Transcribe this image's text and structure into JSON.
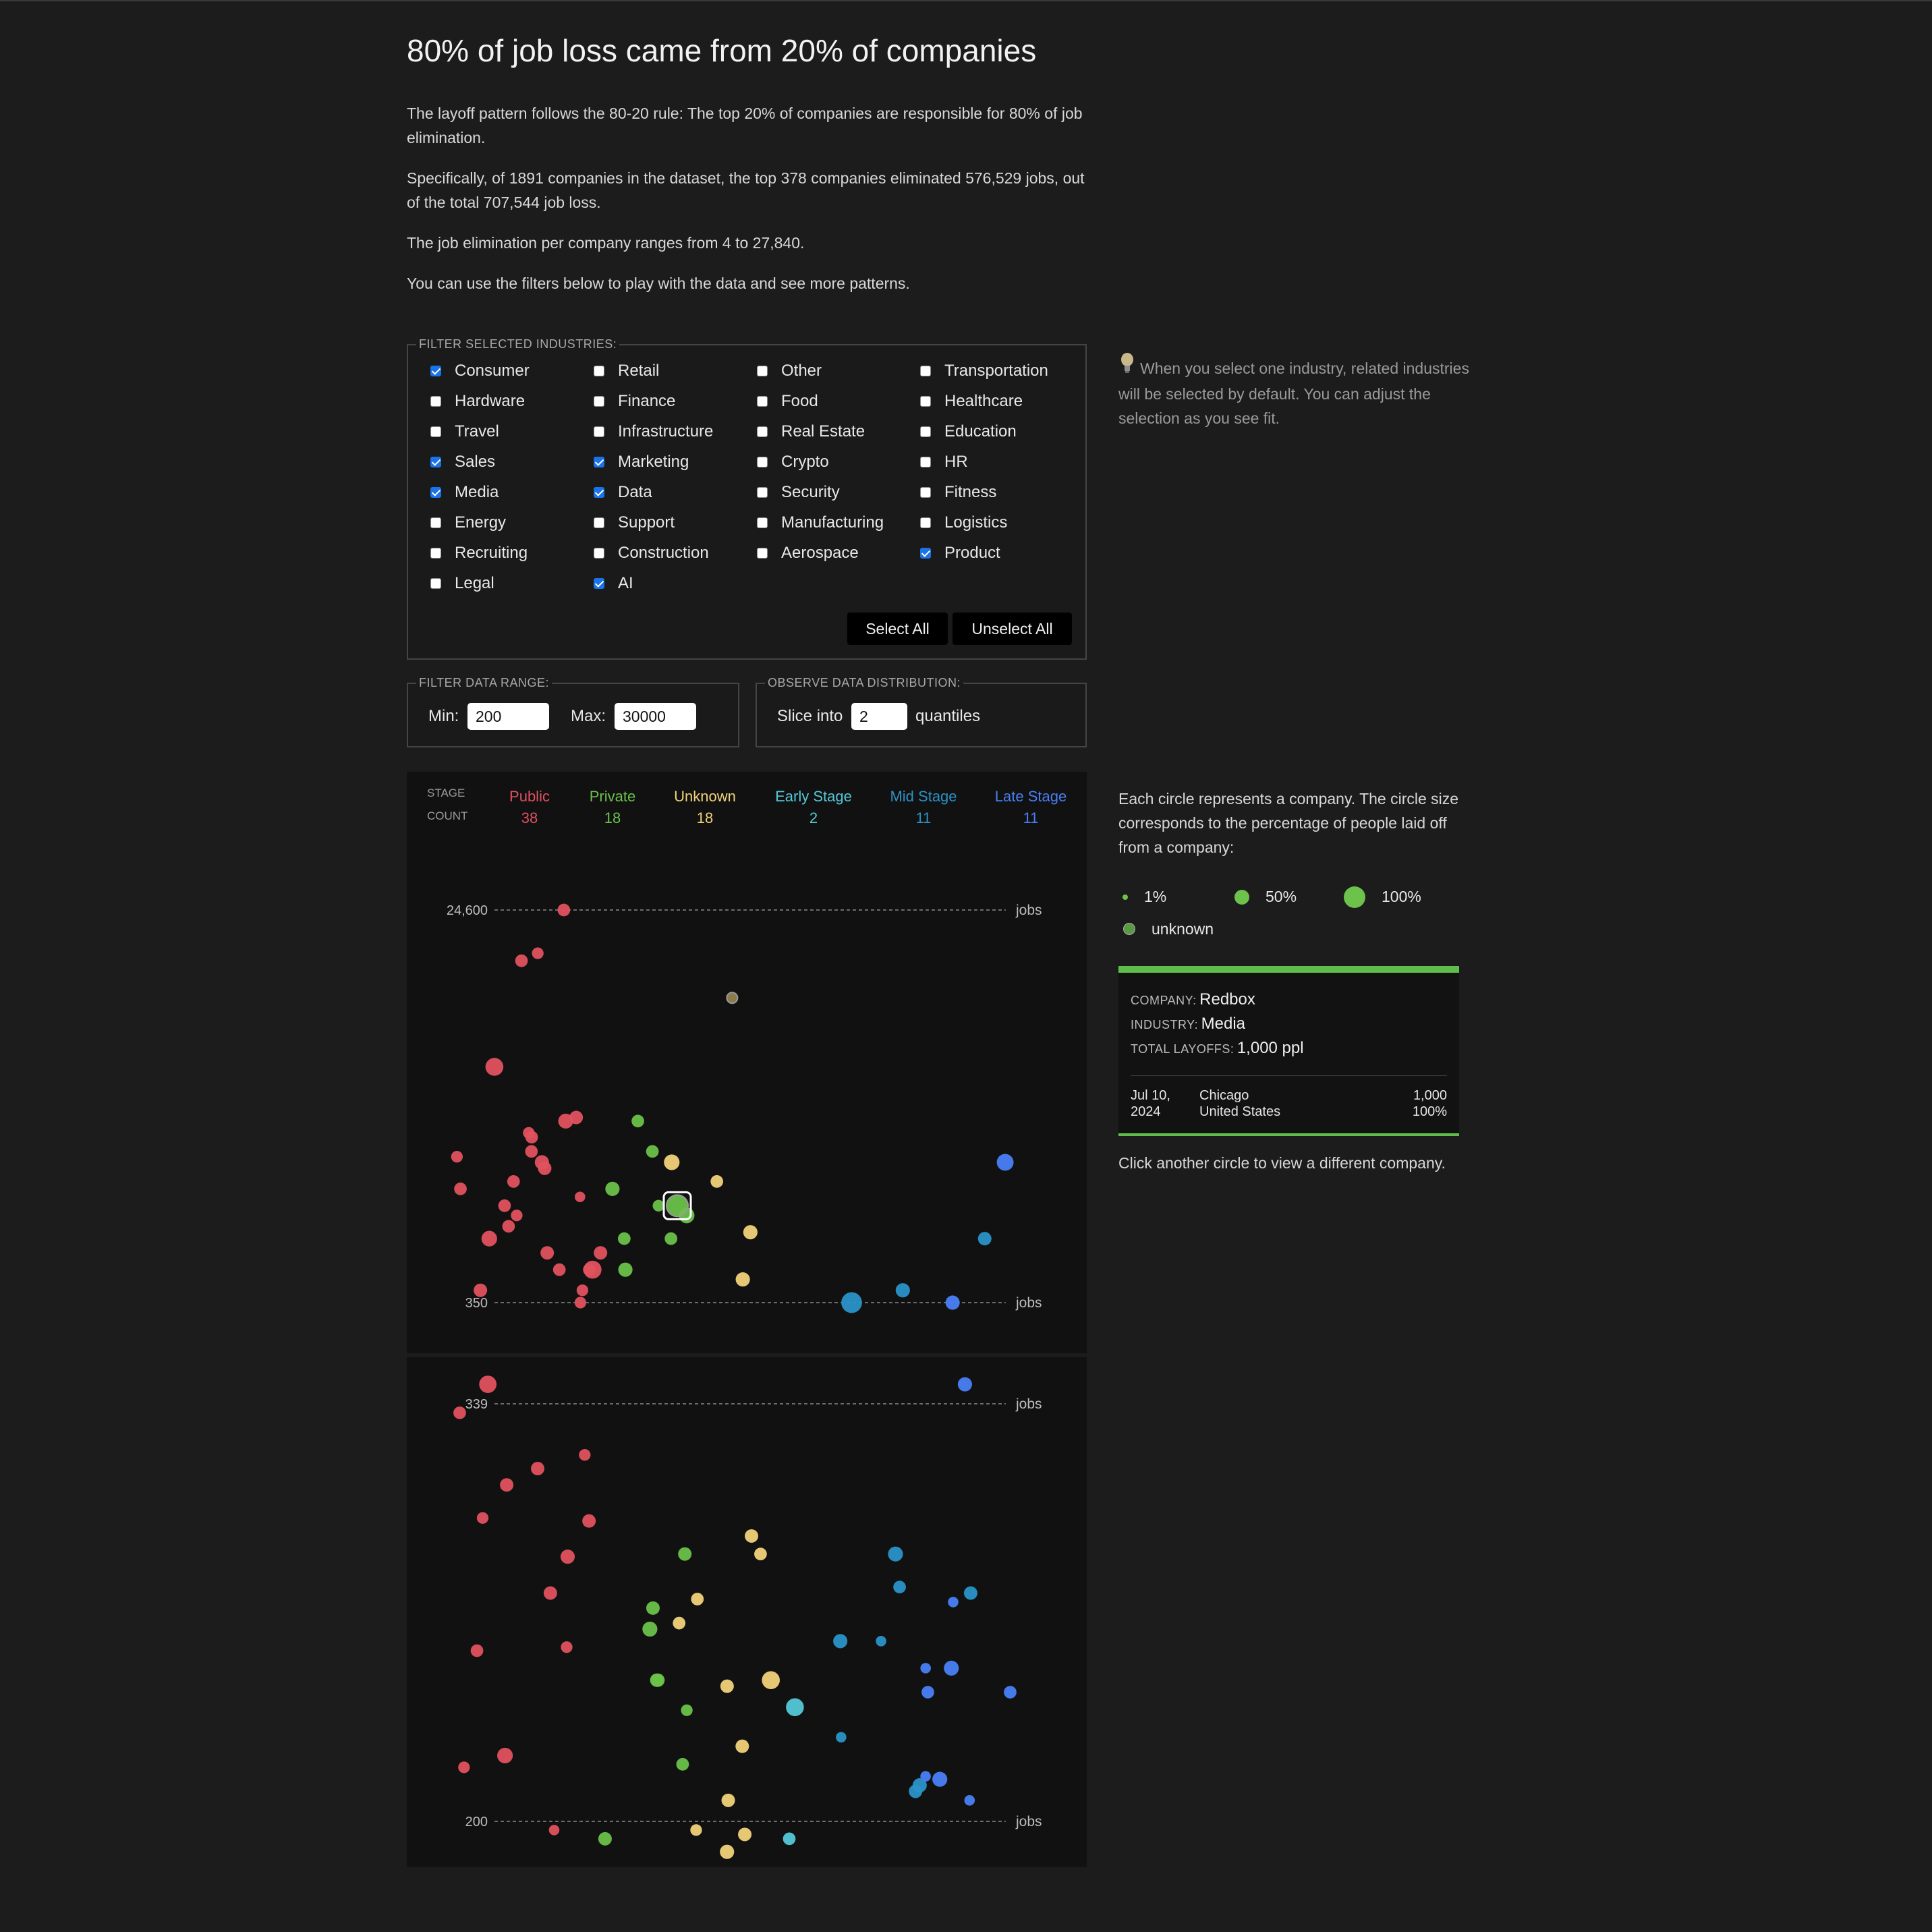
{
  "title": "80% of job loss came from 20% of companies",
  "paragraphs": [
    "The layoff pattern follows the 80-20 rule: The top 20% of companies are responsible for 80% of job elimination.",
    "Specifically, of 1891 companies in the dataset, the top 378 companies eliminated 576,529 jobs, out of the total 707,544 job loss.",
    "The job elimination per company ranges from 4 to 27,840.",
    "You can use the filters below to play with the data and see more patterns."
  ],
  "industry_filter": {
    "legend": "FILTER SELECTED INDUSTRIES:",
    "items": [
      {
        "label": "Consumer",
        "checked": true
      },
      {
        "label": "Retail",
        "checked": false
      },
      {
        "label": "Other",
        "checked": false
      },
      {
        "label": "Transportation",
        "checked": false
      },
      {
        "label": "Hardware",
        "checked": false
      },
      {
        "label": "Finance",
        "checked": false
      },
      {
        "label": "Food",
        "checked": false
      },
      {
        "label": "Healthcare",
        "checked": false
      },
      {
        "label": "Travel",
        "checked": false
      },
      {
        "label": "Infrastructure",
        "checked": false
      },
      {
        "label": "Real Estate",
        "checked": false
      },
      {
        "label": "Education",
        "checked": false
      },
      {
        "label": "Sales",
        "checked": true
      },
      {
        "label": "Marketing",
        "checked": true
      },
      {
        "label": "Crypto",
        "checked": false
      },
      {
        "label": "HR",
        "checked": false
      },
      {
        "label": "Media",
        "checked": true
      },
      {
        "label": "Data",
        "checked": true
      },
      {
        "label": "Security",
        "checked": false
      },
      {
        "label": "Fitness",
        "checked": false
      },
      {
        "label": "Energy",
        "checked": false
      },
      {
        "label": "Support",
        "checked": false
      },
      {
        "label": "Manufacturing",
        "checked": false
      },
      {
        "label": "Logistics",
        "checked": false
      },
      {
        "label": "Recruiting",
        "checked": false
      },
      {
        "label": "Construction",
        "checked": false
      },
      {
        "label": "Aerospace",
        "checked": false
      },
      {
        "label": "Product",
        "checked": true
      },
      {
        "label": "Legal",
        "checked": false
      },
      {
        "label": "AI",
        "checked": true
      }
    ],
    "select_all": "Select All",
    "unselect_all": "Unselect All",
    "tip": "When you select one industry, related industries will be selected by default. You can adjust the selection as you see fit."
  },
  "range_filter": {
    "legend": "FILTER DATA RANGE:",
    "min_label": "Min:",
    "min_value": "200",
    "max_label": "Max:",
    "max_value": "30000"
  },
  "distribution": {
    "legend": "OBSERVE DATA DISTRIBUTION:",
    "prefix": "Slice into",
    "value": "2",
    "suffix": "quantiles"
  },
  "stage_header": {
    "stage_label": "STAGE",
    "count_label": "COUNT",
    "stages": [
      {
        "name": "Public",
        "count": "38",
        "color": "#e0525f"
      },
      {
        "name": "Private",
        "count": "18",
        "color": "#6cc24a"
      },
      {
        "name": "Unknown",
        "count": "18",
        "color": "#f1d27a"
      },
      {
        "name": "Early Stage",
        "count": "2",
        "color": "#55c8d8"
      },
      {
        "name": "Mid Stage",
        "count": "11",
        "color": "#2a93c8"
      },
      {
        "name": "Late Stage",
        "count": "11",
        "color": "#4a7ff5"
      }
    ]
  },
  "panels": [
    {
      "top_label": "24,600",
      "bottom_label": "350",
      "unit": "jobs"
    },
    {
      "top_label": "339",
      "bottom_label": "200",
      "unit": "jobs"
    }
  ],
  "legend_text": "Each circle represents a company. The circle size corresponds to the percentage of people laid off from a company:",
  "size_legend": [
    {
      "label": "1%",
      "color": "#6cc24a"
    },
    {
      "label": "50%",
      "color": "#6cc24a"
    },
    {
      "label": "100%",
      "color": "#6cc24a"
    },
    {
      "label": "unknown",
      "color": "#5a9a44"
    }
  ],
  "selected_company": {
    "company_key": "COMPANY:",
    "company": "Redbox",
    "industry_key": "INDUSTRY:",
    "industry": "Media",
    "total_key": "TOTAL LAYOFFS:",
    "total": "1,000 ppl",
    "date_line1": "Jul 10,",
    "date_line2": "2024",
    "city": "Chicago",
    "country": "United States",
    "count": "1,000",
    "percent": "100%"
  },
  "click_hint": "Click another circle to view a different company.",
  "chart_data": {
    "type": "scatter",
    "series_colors": {
      "Public": "#e0525f",
      "Private": "#6cc24a",
      "Unknown": "#f1d27a",
      "Early Stage": "#55c8d8",
      "Mid Stage": "#2a93c8",
      "Late Stage": "#4a7ff5"
    },
    "panels": [
      {
        "ylim": [
          350,
          24600
        ],
        "points": [
          {
            "stage": "Public",
            "jobs": 24600,
            "pct": 20
          },
          {
            "stage": "Public",
            "jobs": 15400,
            "pct": 15
          },
          {
            "stage": "Public",
            "jobs": 14200,
            "pct": 20
          },
          {
            "stage": "Public",
            "jobs": 4500,
            "pct": 60
          },
          {
            "stage": "Public",
            "jobs": 2600,
            "pct": 25
          },
          {
            "stage": "Public",
            "jobs": 2500,
            "pct": 35
          },
          {
            "stage": "Public",
            "jobs": 2200,
            "pct": 15
          },
          {
            "stage": "Public",
            "jobs": 2100,
            "pct": 20
          },
          {
            "stage": "Public",
            "jobs": 1800,
            "pct": 20
          },
          {
            "stage": "Public",
            "jobs": 1700,
            "pct": 15
          },
          {
            "stage": "Public",
            "jobs": 1600,
            "pct": 30
          },
          {
            "stage": "Public",
            "jobs": 1500,
            "pct": 25
          },
          {
            "stage": "Public",
            "jobs": 1300,
            "pct": 20
          },
          {
            "stage": "Public",
            "jobs": 1100,
            "pct": 10
          },
          {
            "stage": "Public",
            "jobs": 1000,
            "pct": 20
          },
          {
            "stage": "Public",
            "jobs": 900,
            "pct": 15
          },
          {
            "stage": "Public",
            "jobs": 700,
            "pct": 40
          },
          {
            "stage": "Public",
            "jobs": 600,
            "pct": 25
          },
          {
            "stage": "Public",
            "jobs": 500,
            "pct": 20
          },
          {
            "stage": "Public",
            "jobs": 400,
            "pct": 15
          },
          {
            "stage": "Public",
            "jobs": 350,
            "pct": 15
          },
          {
            "stage": "Public",
            "jobs": 1200,
            "pct": 20
          },
          {
            "stage": "Public",
            "jobs": 600,
            "pct": 25
          },
          {
            "stage": "Public",
            "jobs": 500,
            "pct": 60
          },
          {
            "stage": "Public",
            "jobs": 300,
            "pct": 55
          },
          {
            "stage": "Public",
            "jobs": 200,
            "pct": 30
          },
          {
            "stage": "Public",
            "jobs": 150,
            "pct": 20
          },
          {
            "stage": "Public",
            "jobs": 500,
            "pct": 20
          },
          {
            "stage": "Public",
            "jobs": 400,
            "pct": 25
          },
          {
            "stage": "Public",
            "jobs": 100,
            "pct": 40
          },
          {
            "stage": "Public",
            "jobs": 250,
            "pct": 25
          },
          {
            "stage": "Public",
            "jobs": 800,
            "pct": 20
          },
          {
            "stage": "Private",
            "jobs": 2500,
            "pct": 20
          },
          {
            "stage": "Private",
            "jobs": 1800,
            "pct": 20
          },
          {
            "stage": "Private",
            "jobs": 1200,
            "pct": 30
          },
          {
            "stage": "Private",
            "jobs": 1000,
            "pct": 15
          },
          {
            "stage": "Private",
            "jobs": 900,
            "pct": 40
          },
          {
            "stage": "Private",
            "jobs": 700,
            "pct": 20
          },
          {
            "stage": "Private",
            "jobs": 500,
            "pct": 30
          },
          {
            "stage": "Private",
            "jobs": 700,
            "pct": 20
          },
          {
            "stage": "Private",
            "jobs": 1000,
            "pct": 100
          },
          {
            "stage": "Unknown",
            "jobs": 9500,
            "pct": null
          },
          {
            "stage": "Unknown",
            "jobs": 1600,
            "pct": 40
          },
          {
            "stage": "Unknown",
            "jobs": 1300,
            "pct": 20
          },
          {
            "stage": "Unknown",
            "jobs": 750,
            "pct": 30
          },
          {
            "stage": "Unknown",
            "jobs": 450,
            "pct": 30
          },
          {
            "stage": "Mid Stage",
            "jobs": 350,
            "pct": 90
          },
          {
            "stage": "Mid Stage",
            "jobs": 400,
            "pct": 30
          },
          {
            "stage": "Mid Stage",
            "jobs": 700,
            "pct": 25
          },
          {
            "stage": "Late Stage",
            "jobs": 1600,
            "pct": 50
          },
          {
            "stage": "Late Stage",
            "jobs": 300,
            "pct": 30
          },
          {
            "stage": "Late Stage",
            "jobs": 350,
            "pct": 30
          }
        ]
      },
      {
        "ylim": [
          200,
          339
        ],
        "points": [
          {
            "stage": "Public",
            "jobs": 336,
            "pct": 20
          },
          {
            "stage": "Public",
            "jobs": 312,
            "pct": 25
          },
          {
            "stage": "Public",
            "jobs": 322,
            "pct": 15
          },
          {
            "stage": "Public",
            "jobs": 301,
            "pct": 15
          },
          {
            "stage": "Public",
            "jobs": 300,
            "pct": 25
          },
          {
            "stage": "Public",
            "jobs": 276,
            "pct": 25
          },
          {
            "stage": "Public",
            "jobs": 258,
            "pct": 15
          },
          {
            "stage": "Public",
            "jobs": 218,
            "pct": 15
          },
          {
            "stage": "Public",
            "jobs": 198,
            "pct": 10
          },
          {
            "stage": "Private",
            "jobs": 289,
            "pct": 25
          },
          {
            "stage": "Private",
            "jobs": 271,
            "pct": 25
          },
          {
            "stage": "Private",
            "jobs": 264,
            "pct": 35
          },
          {
            "stage": "Private",
            "jobs": 247,
            "pct": 25
          },
          {
            "stage": "Private",
            "jobs": 247,
            "pct": 25
          },
          {
            "stage": "Private",
            "jobs": 237,
            "pct": 15
          },
          {
            "stage": "Private",
            "jobs": 219,
            "pct": 20
          },
          {
            "stage": "Private",
            "jobs": 196,
            "pct": 25
          },
          {
            "stage": "Unknown",
            "jobs": 295,
            "pct": 25
          },
          {
            "stage": "Unknown",
            "jobs": 289,
            "pct": 20
          },
          {
            "stage": "Unknown",
            "jobs": 274,
            "pct": 20
          },
          {
            "stage": "Unknown",
            "jobs": 266,
            "pct": 20
          },
          {
            "stage": "Unknown",
            "jobs": 247,
            "pct": 60
          },
          {
            "stage": "Unknown",
            "jobs": 245,
            "pct": 25
          },
          {
            "stage": "Unknown",
            "jobs": 225,
            "pct": 25
          },
          {
            "stage": "Unknown",
            "jobs": 207,
            "pct": 25
          },
          {
            "stage": "Unknown",
            "jobs": 197,
            "pct": 25
          },
          {
            "stage": "Unknown",
            "jobs": 193,
            "pct": 30
          },
          {
            "stage": "Unknown",
            "jobs": 198,
            "pct": 15
          },
          {
            "stage": "Early Stage",
            "jobs": 238,
            "pct": 60
          },
          {
            "stage": "Early Stage",
            "jobs": 196,
            "pct": 20
          },
          {
            "stage": "Mid Stage",
            "jobs": 289,
            "pct": 35
          },
          {
            "stage": "Mid Stage",
            "jobs": 276,
            "pct": 25
          },
          {
            "stage": "Mid Stage",
            "jobs": 278,
            "pct": 20
          },
          {
            "stage": "Mid Stage",
            "jobs": 260,
            "pct": 10
          },
          {
            "stage": "Mid Stage",
            "jobs": 260,
            "pct": 30
          },
          {
            "stage": "Mid Stage",
            "jobs": 228,
            "pct": 10
          },
          {
            "stage": "Mid Stage",
            "jobs": 212,
            "pct": 30
          },
          {
            "stage": "Mid Stage",
            "jobs": 210,
            "pct": 25
          },
          {
            "stage": "Late Stage",
            "jobs": 273,
            "pct": 10
          },
          {
            "stage": "Late Stage",
            "jobs": 251,
            "pct": 35
          },
          {
            "stage": "Late Stage",
            "jobs": 251,
            "pct": 10
          },
          {
            "stage": "Late Stage",
            "jobs": 243,
            "pct": 20
          },
          {
            "stage": "Late Stage",
            "jobs": 243,
            "pct": 20
          },
          {
            "stage": "Late Stage",
            "jobs": 215,
            "pct": 10
          },
          {
            "stage": "Late Stage",
            "jobs": 214,
            "pct": 35
          },
          {
            "stage": "Late Stage",
            "jobs": 207,
            "pct": 10
          }
        ]
      }
    ]
  }
}
